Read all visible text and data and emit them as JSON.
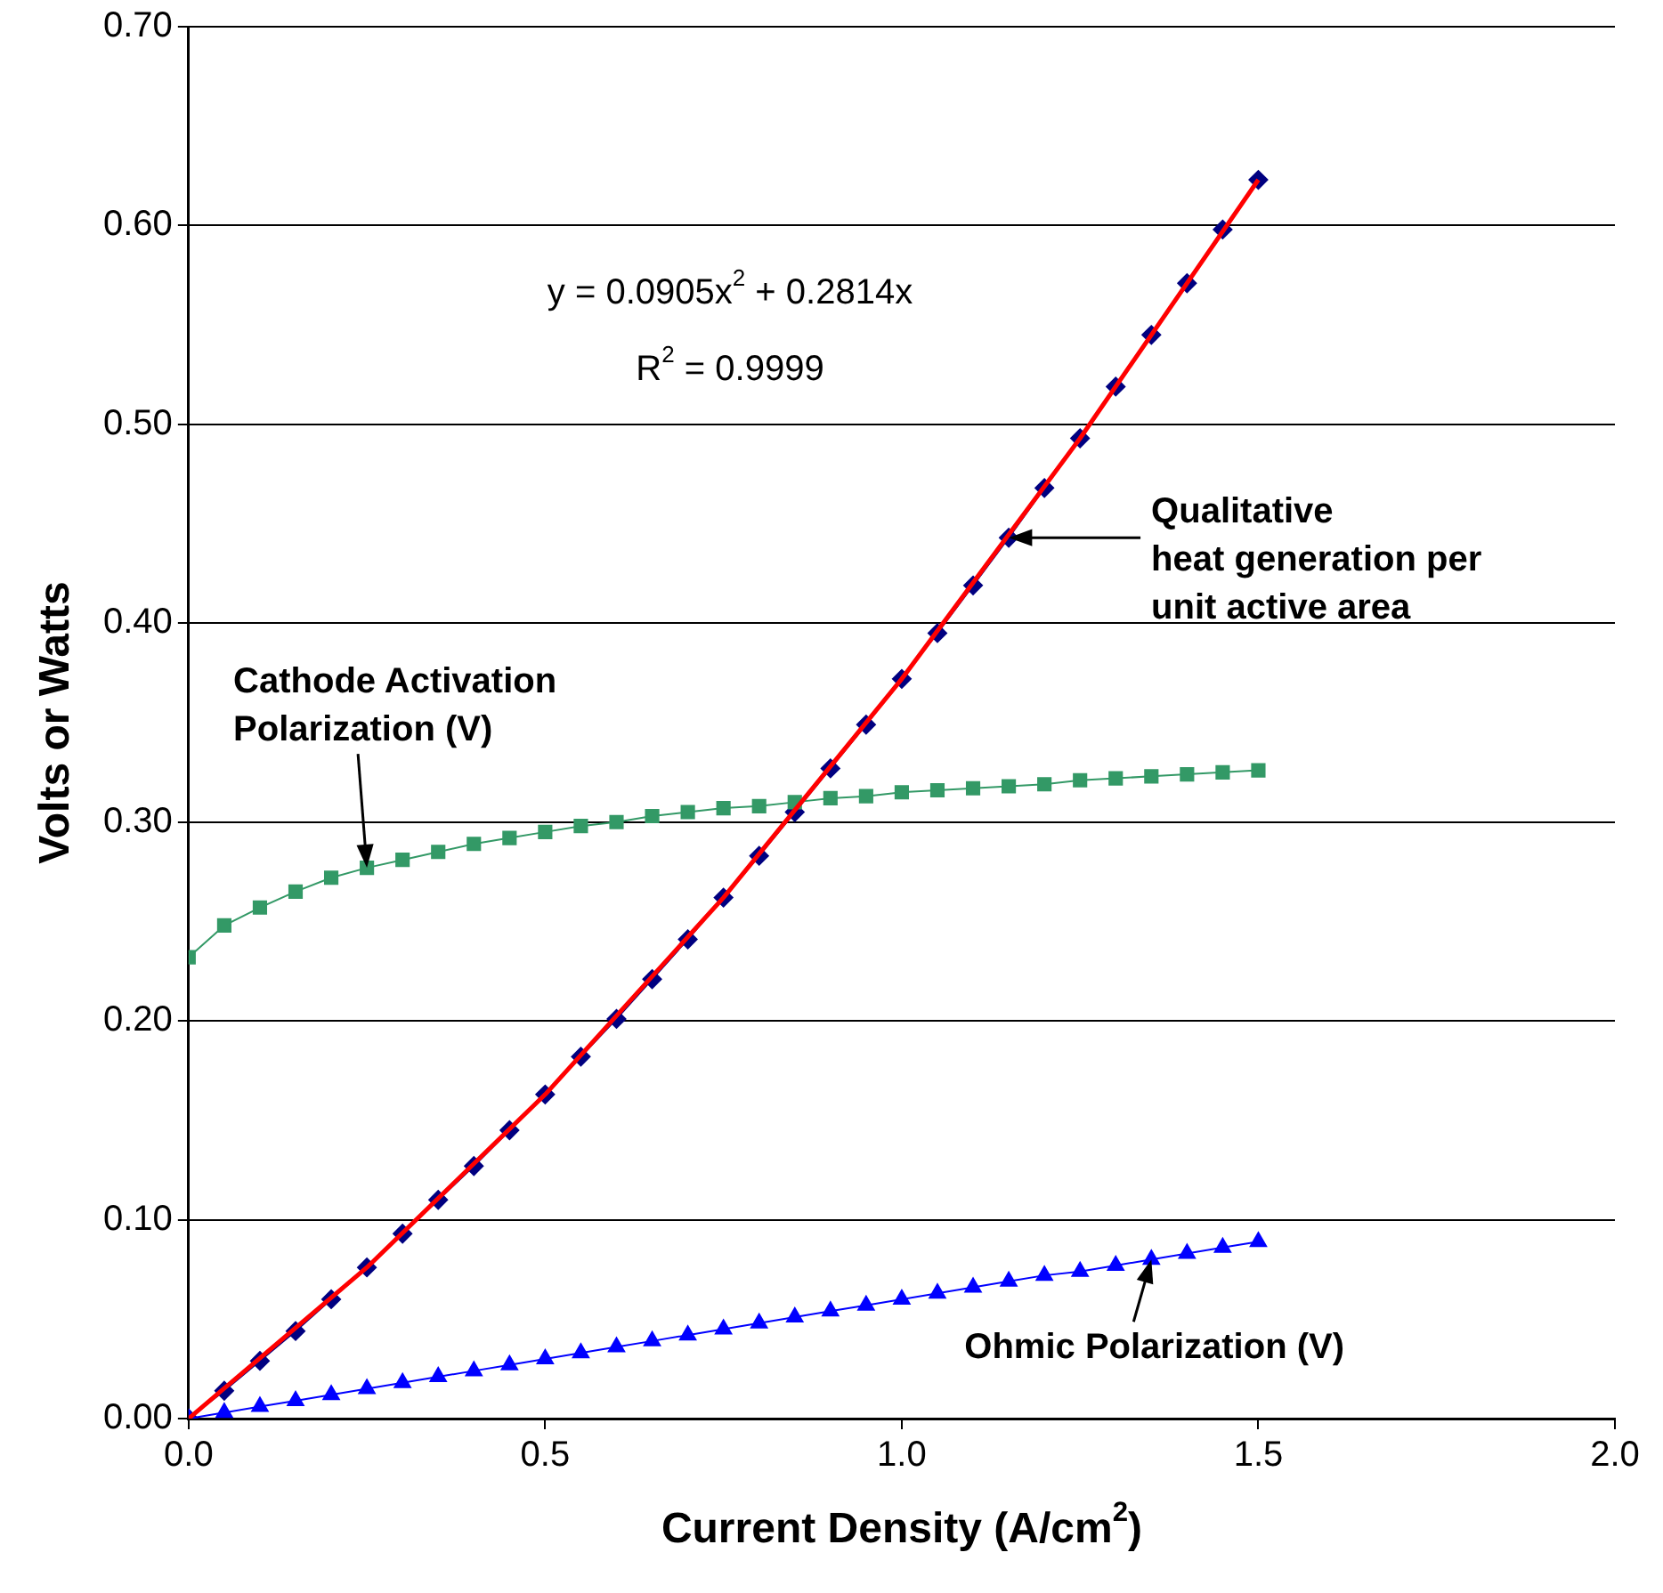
{
  "chart_data": {
    "type": "line",
    "xlabel": "Current Density (A/cm$^{2}$)",
    "ylabel": "Volts or Watts",
    "xlim": [
      0,
      2
    ],
    "xticks": [
      {
        "value": 0,
        "label": "0.0"
      },
      {
        "value": 0.5,
        "label": "0.5"
      },
      {
        "value": 1,
        "label": "1.0"
      },
      {
        "value": 1.5,
        "label": "1.5"
      },
      {
        "value": 2,
        "label": "2.0"
      }
    ],
    "ylim": [
      0,
      0.7
    ],
    "yticks": [
      {
        "value": 0,
        "label": "0.00"
      },
      {
        "value": 0.1,
        "label": "0.10"
      },
      {
        "value": 0.2,
        "label": "0.20"
      },
      {
        "value": 0.3,
        "label": "0.30"
      },
      {
        "value": 0.4,
        "label": "0.40"
      },
      {
        "value": 0.5,
        "label": "0.50"
      },
      {
        "value": 0.6,
        "label": "0.60"
      },
      {
        "value": 0.7,
        "label": "0.70"
      }
    ],
    "grid": "y",
    "legend": false,
    "x": [
      0,
      0.05,
      0.1,
      0.15,
      0.2,
      0.25,
      0.3,
      0.35,
      0.4,
      0.45,
      0.5,
      0.55,
      0.6,
      0.65,
      0.7,
      0.75,
      0.8,
      0.85,
      0.9,
      0.95,
      1.0,
      1.05,
      1.1,
      1.15,
      1.2,
      1.25,
      1.3,
      1.35,
      1.4,
      1.45,
      1.5
    ],
    "series": [
      {
        "color": "#339966",
        "marker": "square",
        "values": [
          0.232,
          0.248,
          0.257,
          0.265,
          0.272,
          0.277,
          0.281,
          0.285,
          0.289,
          0.292,
          0.295,
          0.298,
          0.3,
          0.303,
          0.305,
          0.307,
          0.308,
          0.31,
          0.312,
          0.313,
          0.315,
          0.316,
          0.317,
          0.318,
          0.319,
          0.321,
          0.322,
          0.323,
          0.324,
          0.325,
          0.326
        ]
      },
      {
        "color": "#0000ff",
        "marker": "triangle",
        "values": [
          0,
          0.003,
          0.006,
          0.009,
          0.012,
          0.015,
          0.018,
          0.021,
          0.024,
          0.027,
          0.03,
          0.033,
          0.036,
          0.039,
          0.042,
          0.045,
          0.048,
          0.051,
          0.054,
          0.057,
          0.06,
          0.063,
          0.066,
          0.069,
          0.072,
          0.074,
          0.077,
          0.08,
          0.083,
          0.086,
          0.089
        ]
      },
      {
        "color": "#000080",
        "marker": "diamond",
        "values": [
          0,
          0.014,
          0.029,
          0.044,
          0.06,
          0.076,
          0.093,
          0.11,
          0.127,
          0.145,
          0.163,
          0.182,
          0.201,
          0.221,
          0.241,
          0.262,
          0.283,
          0.305,
          0.327,
          0.349,
          0.372,
          0.395,
          0.419,
          0.443,
          0.468,
          0.493,
          0.519,
          0.545,
          0.571,
          0.598,
          0.623
        ]
      },
      {
        "color": "#ff0000",
        "marker": "none",
        "x": [
          0,
          0.25,
          0.5,
          0.75,
          1.0,
          1.25,
          1.5
        ],
        "values": [
          0,
          0.076,
          0.163,
          0.262,
          0.372,
          0.493,
          0.623
        ]
      }
    ],
    "annotations": [
      {
        "text": "Qualitative\nheat generation per\nunit active area",
        "x": 1.15,
        "y": 0.443
      },
      {
        "text": "Cathode Activation\nPolarization (V)",
        "x": 0.25,
        "y": 0.277
      },
      {
        "text": "Ohmic Polarization (V)",
        "x": 1.35,
        "y": 0.08
      },
      "y = 0.0905x$^{2}$ + 0.2814x",
      "R$^{2}$ = 0.9999"
    ]
  }
}
